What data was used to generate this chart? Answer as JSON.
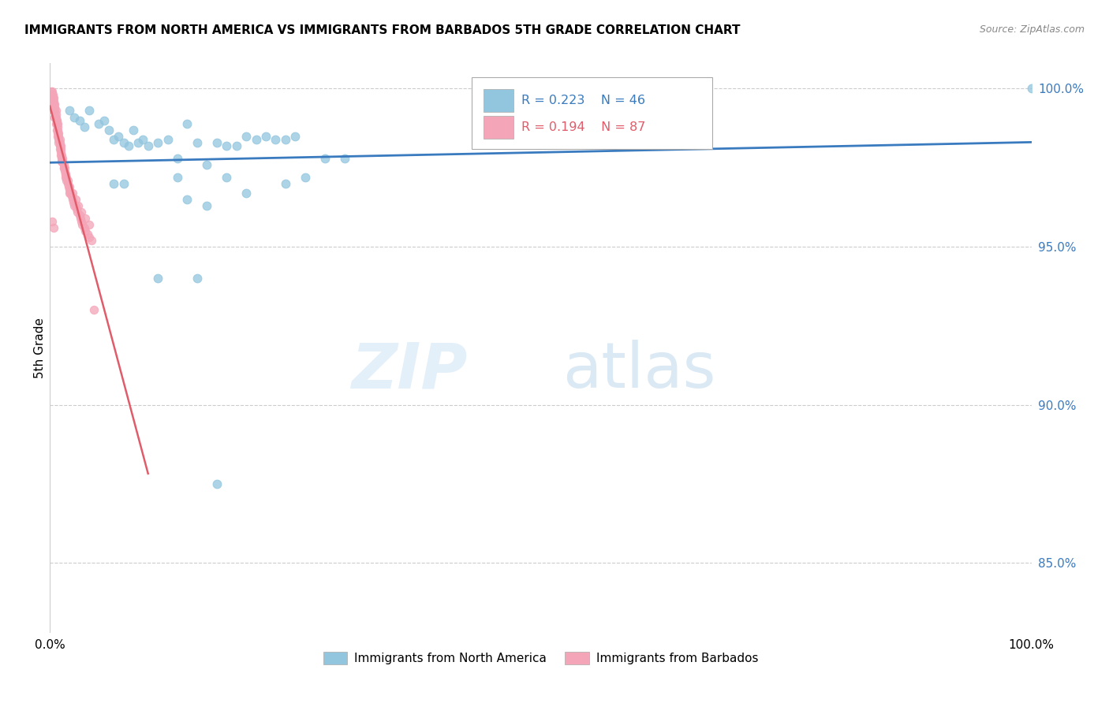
{
  "title": "IMMIGRANTS FROM NORTH AMERICA VS IMMIGRANTS FROM BARBADOS 5TH GRADE CORRELATION CHART",
  "source": "Source: ZipAtlas.com",
  "ylabel": "5th Grade",
  "xlim": [
    0,
    1
  ],
  "ylim": [
    0.828,
    1.008
  ],
  "yticks": [
    0.85,
    0.9,
    0.95,
    1.0
  ],
  "ytick_labels": [
    "85.0%",
    "90.0%",
    "95.0%",
    "100.0%"
  ],
  "xticks": [
    0.0,
    0.1,
    0.2,
    0.3,
    0.4,
    0.5,
    0.6,
    0.7,
    0.8,
    0.9,
    1.0
  ],
  "xtick_labels": [
    "0.0%",
    "",
    "",
    "",
    "",
    "",
    "",
    "",
    "",
    "",
    "100.0%"
  ],
  "r_blue": 0.223,
  "n_blue": 46,
  "r_pink": 0.194,
  "n_pink": 87,
  "blue_color": "#92c5de",
  "pink_color": "#f4a5b8",
  "trend_blue_color": "#3a7bbf",
  "trend_pink_color": "#e05c6a",
  "legend_label_blue": "Immigrants from North America",
  "legend_label_pink": "Immigrants from Barbados",
  "blue_scatter_x": [
    0.02,
    0.025,
    0.03,
    0.035,
    0.04,
    0.05,
    0.055,
    0.06,
    0.065,
    0.07,
    0.075,
    0.08,
    0.085,
    0.09,
    0.095,
    0.1,
    0.11,
    0.12,
    0.13,
    0.14,
    0.15,
    0.16,
    0.17,
    0.18,
    0.19,
    0.2,
    0.21,
    0.22,
    0.23,
    0.24,
    0.25,
    0.14,
    0.16,
    0.2,
    0.24,
    0.11,
    0.15,
    0.17,
    0.065,
    0.075,
    0.13,
    0.18,
    0.26,
    0.28,
    0.3,
    1.0
  ],
  "blue_scatter_y": [
    0.993,
    0.991,
    0.99,
    0.988,
    0.993,
    0.989,
    0.99,
    0.987,
    0.984,
    0.985,
    0.983,
    0.982,
    0.987,
    0.983,
    0.984,
    0.982,
    0.983,
    0.984,
    0.978,
    0.989,
    0.983,
    0.976,
    0.983,
    0.982,
    0.982,
    0.985,
    0.984,
    0.985,
    0.984,
    0.984,
    0.985,
    0.965,
    0.963,
    0.967,
    0.97,
    0.94,
    0.94,
    0.875,
    0.97,
    0.97,
    0.972,
    0.972,
    0.972,
    0.978,
    0.978,
    1.0
  ],
  "pink_scatter_x": [
    0.001,
    0.002,
    0.002,
    0.003,
    0.003,
    0.004,
    0.004,
    0.004,
    0.005,
    0.005,
    0.005,
    0.006,
    0.006,
    0.006,
    0.007,
    0.007,
    0.007,
    0.008,
    0.008,
    0.008,
    0.008,
    0.009,
    0.009,
    0.009,
    0.01,
    0.01,
    0.01,
    0.011,
    0.011,
    0.011,
    0.012,
    0.012,
    0.013,
    0.013,
    0.014,
    0.014,
    0.015,
    0.015,
    0.016,
    0.016,
    0.017,
    0.017,
    0.018,
    0.019,
    0.02,
    0.02,
    0.021,
    0.022,
    0.023,
    0.024,
    0.025,
    0.026,
    0.027,
    0.028,
    0.03,
    0.031,
    0.032,
    0.033,
    0.035,
    0.036,
    0.038,
    0.04,
    0.042,
    0.002,
    0.003,
    0.004,
    0.005,
    0.006,
    0.007,
    0.008,
    0.009,
    0.01,
    0.011,
    0.012,
    0.014,
    0.016,
    0.018,
    0.02,
    0.023,
    0.026,
    0.029,
    0.032,
    0.036,
    0.04,
    0.002,
    0.004,
    0.045
  ],
  "pink_scatter_y": [
    0.999,
    0.999,
    0.998,
    0.998,
    0.997,
    0.997,
    0.996,
    0.995,
    0.995,
    0.994,
    0.993,
    0.993,
    0.992,
    0.991,
    0.99,
    0.99,
    0.989,
    0.989,
    0.988,
    0.987,
    0.986,
    0.986,
    0.985,
    0.984,
    0.984,
    0.983,
    0.982,
    0.982,
    0.981,
    0.98,
    0.979,
    0.978,
    0.978,
    0.977,
    0.976,
    0.975,
    0.975,
    0.974,
    0.973,
    0.972,
    0.972,
    0.971,
    0.97,
    0.969,
    0.968,
    0.967,
    0.967,
    0.966,
    0.965,
    0.964,
    0.963,
    0.963,
    0.962,
    0.961,
    0.96,
    0.959,
    0.958,
    0.957,
    0.956,
    0.955,
    0.954,
    0.953,
    0.952,
    0.997,
    0.995,
    0.993,
    0.991,
    0.989,
    0.987,
    0.985,
    0.983,
    0.981,
    0.979,
    0.977,
    0.975,
    0.973,
    0.971,
    0.969,
    0.967,
    0.965,
    0.963,
    0.961,
    0.959,
    0.957,
    0.958,
    0.956,
    0.93
  ]
}
